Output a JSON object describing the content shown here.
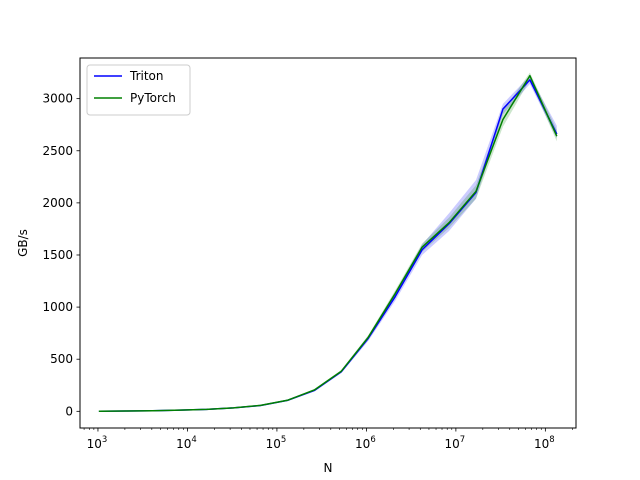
{
  "chart_data": {
    "type": "line",
    "xlabel": "N",
    "ylabel": "GB/s",
    "xscale": "log",
    "xlim": [
      630,
      220000000
    ],
    "ylim": [
      -160,
      3390
    ],
    "x_ticks": [
      {
        "value": 1000,
        "base": "10",
        "exp": "3"
      },
      {
        "value": 10000,
        "base": "10",
        "exp": "4"
      },
      {
        "value": 100000,
        "base": "10",
        "exp": "5"
      },
      {
        "value": 1000000,
        "base": "10",
        "exp": "6"
      },
      {
        "value": 10000000,
        "base": "10",
        "exp": "7"
      },
      {
        "value": 100000000,
        "base": "10",
        "exp": "8"
      }
    ],
    "y_ticks": [
      0,
      500,
      1000,
      1500,
      2000,
      2500,
      3000
    ],
    "grid": false,
    "legend_position": "upper-left",
    "x": [
      1024,
      2048,
      4096,
      8192,
      16384,
      32768,
      65536,
      131072,
      262144,
      524288,
      1048576,
      2097152,
      4194304,
      8388608,
      16777216,
      33554432,
      67108864,
      134217728
    ],
    "series": [
      {
        "name": "Triton",
        "color": "#0000ff",
        "values": [
          1,
          3,
          5,
          11,
          19,
          33,
          56,
          105,
          200,
          380,
          700,
          1100,
          1550,
          1800,
          2100,
          2900,
          3180,
          2660
        ],
        "band_low": [
          0,
          2,
          4,
          9,
          17,
          30,
          52,
          99,
          190,
          368,
          675,
          1060,
          1500,
          1730,
          2040,
          2850,
          3140,
          2620
        ],
        "band_high": [
          2,
          4,
          6,
          13,
          21,
          36,
          60,
          112,
          210,
          392,
          725,
          1140,
          1600,
          1900,
          2220,
          2950,
          3220,
          2740
        ]
      },
      {
        "name": "PyTorch",
        "color": "#008000",
        "values": [
          1,
          3,
          5,
          11,
          19,
          33,
          57,
          106,
          205,
          385,
          710,
          1130,
          1575,
          1810,
          2110,
          2800,
          3220,
          2640
        ],
        "band_low": [
          0,
          2,
          4,
          9,
          17,
          30,
          53,
          100,
          195,
          372,
          690,
          1100,
          1530,
          1760,
          2040,
          2730,
          3180,
          2590
        ],
        "band_high": [
          2,
          4,
          6,
          13,
          21,
          36,
          61,
          112,
          214,
          396,
          730,
          1160,
          1610,
          1860,
          2170,
          2880,
          3250,
          2700
        ]
      }
    ]
  }
}
